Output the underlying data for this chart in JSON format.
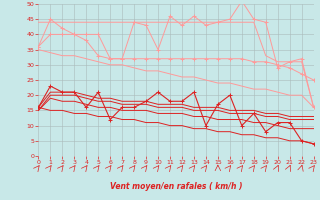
{
  "x": [
    0,
    1,
    2,
    3,
    4,
    5,
    6,
    7,
    8,
    9,
    10,
    11,
    12,
    13,
    14,
    15,
    16,
    17,
    18,
    19,
    20,
    21,
    22,
    23
  ],
  "line1_rafales_jagged": [
    36,
    45,
    42,
    40,
    40,
    40,
    32,
    32,
    44,
    43,
    35,
    46,
    43,
    46,
    43,
    44,
    45,
    51,
    45,
    44,
    29,
    31,
    32,
    16
  ],
  "line2_rafales_upper": [
    44,
    44,
    44,
    44,
    44,
    44,
    44,
    44,
    44,
    44,
    44,
    44,
    44,
    44,
    44,
    44,
    44,
    44,
    44,
    33,
    31,
    31,
    31,
    16
  ],
  "line3_rafales_lower": [
    36,
    40,
    40,
    40,
    38,
    33,
    32,
    32,
    32,
    32,
    32,
    32,
    32,
    32,
    32,
    32,
    32,
    32,
    31,
    31,
    30,
    29,
    27,
    25
  ],
  "line4_rafales_trend": [
    35,
    34,
    33,
    33,
    32,
    31,
    30,
    30,
    29,
    28,
    28,
    27,
    26,
    26,
    25,
    24,
    24,
    23,
    22,
    22,
    21,
    20,
    20,
    16
  ],
  "line5_moy_jagged": [
    16,
    23,
    21,
    21,
    16,
    21,
    12,
    16,
    16,
    18,
    21,
    18,
    18,
    21,
    10,
    17,
    20,
    10,
    14,
    8,
    11,
    11,
    5,
    4
  ],
  "line6_moy_upper": [
    16,
    21,
    21,
    21,
    20,
    19,
    19,
    18,
    18,
    18,
    17,
    17,
    17,
    16,
    16,
    16,
    15,
    15,
    15,
    14,
    14,
    13,
    13,
    13
  ],
  "line7_moy_mid": [
    15,
    20,
    20,
    20,
    19,
    18,
    18,
    17,
    17,
    17,
    16,
    16,
    16,
    15,
    15,
    15,
    14,
    14,
    14,
    13,
    13,
    12,
    12,
    12
  ],
  "line8_moy_lower": [
    15,
    19,
    18,
    18,
    17,
    16,
    16,
    15,
    15,
    15,
    14,
    14,
    14,
    13,
    13,
    12,
    12,
    12,
    11,
    11,
    10,
    9,
    9,
    9
  ],
  "line9_moy_trend": [
    16,
    15,
    15,
    14,
    14,
    13,
    13,
    12,
    12,
    11,
    11,
    10,
    10,
    9,
    9,
    8,
    8,
    7,
    7,
    6,
    6,
    5,
    5,
    4
  ],
  "background_color": "#c8e8e8",
  "grid_color": "#aabbbb",
  "line_color_light": "#ff9999",
  "line_color_dark": "#dd2222",
  "xlabel": "Vent moyen/en rafales ( km/h )",
  "xlim": [
    0,
    23
  ],
  "ylim": [
    0,
    50
  ],
  "yticks": [
    0,
    5,
    10,
    15,
    20,
    25,
    30,
    35,
    40,
    45,
    50
  ],
  "xticks": [
    0,
    1,
    2,
    3,
    4,
    5,
    6,
    7,
    8,
    9,
    10,
    11,
    12,
    13,
    14,
    15,
    16,
    17,
    18,
    19,
    20,
    21,
    22,
    23
  ],
  "wind_dirs": [
    45,
    45,
    45,
    45,
    45,
    45,
    45,
    45,
    45,
    45,
    45,
    45,
    45,
    45,
    45,
    0,
    45,
    45,
    45,
    45,
    30,
    30,
    20,
    45
  ]
}
